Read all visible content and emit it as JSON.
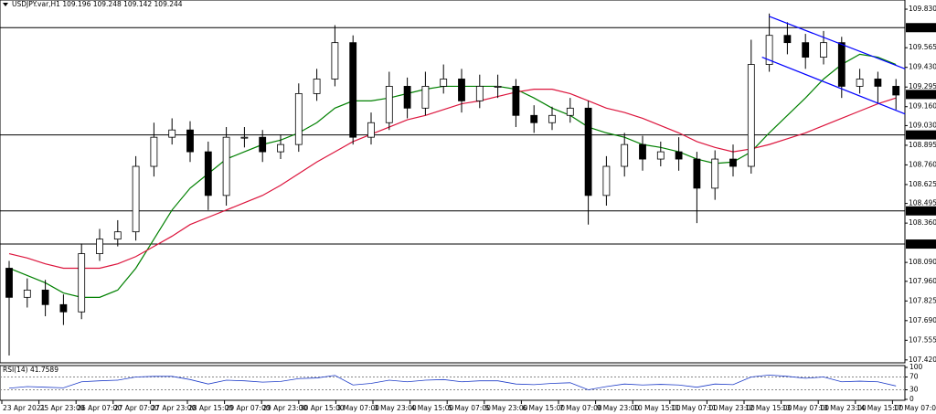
{
  "chart_data": {
    "type": "candlestick",
    "title": "USDJPY.var,H1 109.196 109.248 109.142 109.244",
    "ylim": [
      107.4,
      109.893
    ],
    "yticks": [
      {
        "value": 109.83,
        "label": "109.830"
      },
      109.565,
      {
        "value": 109.43,
        "label": "109.430"
      },
      109.295,
      {
        "value": 109.16,
        "label": "109.160"
      },
      {
        "value": 109.03,
        "label": "109.030"
      },
      108.895,
      {
        "value": 108.76,
        "label": "108.760"
      },
      108.625,
      108.495,
      {
        "value": 108.36,
        "label": "108.360"
      },
      {
        "value": 108.09,
        "label": "108.090"
      },
      {
        "value": 107.96,
        "label": "107.960"
      },
      107.825,
      {
        "value": 107.69,
        "label": "107.690"
      },
      107.555,
      {
        "value": 107.42,
        "label": "107.420"
      }
    ],
    "levels": [
      109.703,
      108.966,
      108.444,
      108.216
    ],
    "level_color": "#000000",
    "last_price": 109.244,
    "x_labels": [
      "23 Apr 2021",
      "25 Apr 23:00",
      "26 Apr 07:00",
      "27 Apr 07:00",
      "27 Apr 23:00",
      "28 Apr 15:00",
      "29 Apr 07:00",
      "29 Apr 23:00",
      "30 Apr 15:00",
      "3 May 07:00",
      "3 May 23:00",
      "4 May 15:00",
      "5 May 07:00",
      "5 May 23:00",
      "6 May 15:00",
      "7 May 07:00",
      "9 May 23:00",
      "10 May 15:00",
      "11 May 07:00",
      "11 May 23:00",
      "12 May 15:00",
      "13 May 07:00",
      "13 May 23:00",
      "14 May 15:00",
      "17 May 07:00"
    ],
    "open": [
      108.05,
      107.85,
      107.9,
      107.8,
      107.75,
      108.15,
      108.25,
      108.3,
      108.75,
      108.95,
      109.0,
      108.85,
      108.55,
      108.95,
      108.95,
      108.85,
      108.9,
      109.25,
      109.35,
      109.6,
      108.95,
      109.05,
      109.3,
      109.15,
      109.3,
      109.35,
      109.2,
      109.3,
      109.3,
      109.1,
      109.05,
      109.1,
      109.15,
      108.55,
      108.75,
      108.9,
      108.8,
      108.85,
      108.8,
      108.6,
      108.8,
      108.75,
      109.45,
      109.65,
      109.6,
      109.5,
      109.6,
      109.3,
      109.35,
      109.3
    ],
    "high": [
      108.1,
      107.98,
      107.97,
      107.87,
      108.22,
      108.32,
      108.38,
      108.82,
      109.05,
      109.08,
      109.06,
      108.92,
      109.02,
      109.02,
      109.0,
      108.97,
      109.32,
      109.42,
      109.72,
      109.65,
      109.12,
      109.4,
      109.36,
      109.4,
      109.45,
      109.42,
      109.38,
      109.38,
      109.35,
      109.17,
      109.16,
      109.22,
      109.2,
      108.82,
      108.98,
      108.96,
      108.92,
      108.95,
      108.85,
      108.86,
      108.9,
      109.62,
      109.8,
      109.74,
      109.66,
      109.68,
      109.64,
      109.42,
      109.4,
      109.35
    ],
    "low": [
      107.45,
      107.78,
      107.72,
      107.66,
      107.7,
      108.1,
      108.2,
      108.24,
      108.68,
      108.9,
      108.78,
      108.45,
      108.48,
      108.88,
      108.78,
      108.8,
      108.85,
      109.2,
      109.3,
      108.9,
      108.9,
      109.0,
      109.08,
      109.1,
      109.25,
      109.12,
      109.15,
      109.22,
      109.02,
      108.98,
      109.0,
      109.05,
      108.35,
      108.48,
      108.68,
      108.72,
      108.75,
      108.72,
      108.36,
      108.52,
      108.68,
      108.7,
      109.4,
      109.52,
      109.42,
      109.45,
      109.22,
      109.25,
      109.18,
      109.14
    ],
    "close": [
      107.85,
      107.9,
      107.8,
      107.75,
      108.15,
      108.25,
      108.3,
      108.75,
      108.95,
      109.0,
      108.85,
      108.55,
      108.95,
      108.95,
      108.85,
      108.9,
      109.25,
      109.35,
      109.6,
      108.95,
      109.05,
      109.3,
      109.15,
      109.3,
      109.35,
      109.2,
      109.3,
      109.3,
      109.1,
      109.05,
      109.1,
      109.15,
      108.55,
      108.75,
      108.9,
      108.8,
      108.85,
      108.8,
      108.6,
      108.8,
      108.75,
      109.45,
      109.65,
      109.6,
      109.5,
      109.6,
      109.3,
      109.35,
      109.3,
      109.24
    ],
    "series": [
      {
        "color": "#008000",
        "values": [
          108.05,
          108.0,
          107.95,
          107.88,
          107.85,
          107.85,
          107.9,
          108.05,
          108.25,
          108.45,
          108.6,
          108.7,
          108.8,
          108.85,
          108.9,
          108.93,
          108.98,
          109.05,
          109.15,
          109.2,
          109.2,
          109.22,
          109.25,
          109.28,
          109.3,
          109.3,
          109.3,
          109.3,
          109.28,
          109.22,
          109.15,
          109.1,
          109.02,
          108.98,
          108.95,
          108.9,
          108.88,
          108.85,
          108.8,
          108.77,
          108.78,
          108.85,
          108.98,
          109.1,
          109.22,
          109.35,
          109.45,
          109.52,
          109.5,
          109.45
        ]
      },
      {
        "color": "#dc143c",
        "values": [
          108.15,
          108.12,
          108.08,
          108.05,
          108.05,
          108.05,
          108.08,
          108.13,
          108.2,
          108.27,
          108.35,
          108.4,
          108.45,
          108.5,
          108.55,
          108.62,
          108.7,
          108.78,
          108.85,
          108.92,
          108.97,
          109.02,
          109.07,
          109.1,
          109.14,
          109.18,
          109.2,
          109.23,
          109.26,
          109.28,
          109.28,
          109.25,
          109.2,
          109.15,
          109.12,
          109.08,
          109.03,
          108.98,
          108.92,
          108.88,
          108.85,
          108.87,
          108.9,
          108.94,
          108.98,
          109.03,
          109.08,
          109.13,
          109.18,
          109.22
        ]
      }
    ],
    "trendlines": [
      {
        "color": "#0000ff",
        "x": [
          42,
          49.5
        ],
        "y": [
          109.78,
          109.42
        ]
      },
      {
        "color": "#0000ff",
        "x": [
          41.6,
          49.5
        ],
        "y": [
          109.5,
          109.11
        ]
      }
    ],
    "rsi": {
      "label": "RSI(14) 41.7589",
      "color": "#1e3cc8",
      "ylim": [
        0,
        100
      ],
      "yticks": [
        100,
        70,
        30,
        0
      ],
      "levels": [
        70,
        30
      ],
      "values": [
        35,
        40,
        38,
        36,
        55,
        58,
        60,
        70,
        72,
        72,
        62,
        48,
        60,
        58,
        54,
        56,
        65,
        67,
        75,
        45,
        50,
        60,
        55,
        60,
        62,
        55,
        58,
        58,
        48,
        46,
        50,
        52,
        30,
        40,
        48,
        45,
        47,
        45,
        38,
        48,
        46,
        70,
        76,
        72,
        66,
        70,
        55,
        57,
        55,
        42
      ]
    }
  }
}
